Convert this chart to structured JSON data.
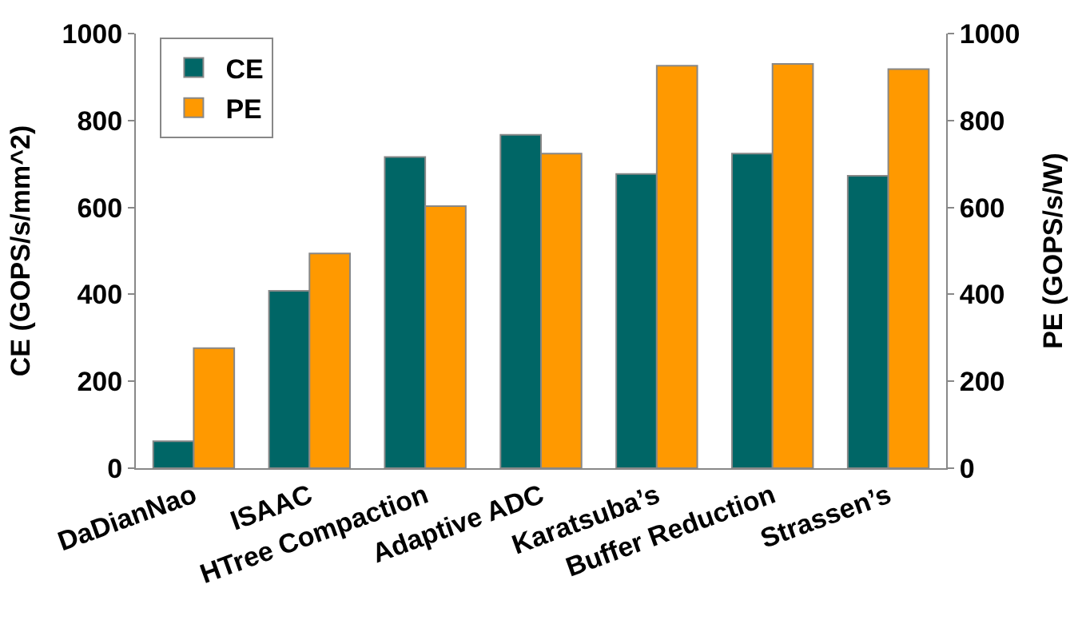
{
  "chart_data": {
    "type": "bar",
    "ylabel": "CE (GOPS/s/mm^2)",
    "y2label": "PE (GOPS/s/W)",
    "categories": [
      "DaDianNao",
      "ISAAC",
      "HTree Compaction",
      "Adaptive ADC",
      "Karatsuba’s",
      "Buffer Reduction",
      "Strassen’s"
    ],
    "series": [
      {
        "name": "CE",
        "color": "#006666",
        "values": [
          62,
          408,
          716,
          767,
          677,
          724,
          673
        ]
      },
      {
        "name": "PE",
        "color": "#ff9900",
        "axis": "y2",
        "values": [
          276,
          494,
          603,
          724,
          926,
          930,
          918
        ]
      }
    ],
    "ylim": [
      0,
      1000
    ],
    "yticks": [
      0,
      200,
      400,
      600,
      800,
      1000
    ],
    "y2lim": [
      0,
      1000
    ],
    "y2ticks": [
      0,
      200,
      400,
      600,
      800,
      1000
    ],
    "legend": "top left"
  }
}
